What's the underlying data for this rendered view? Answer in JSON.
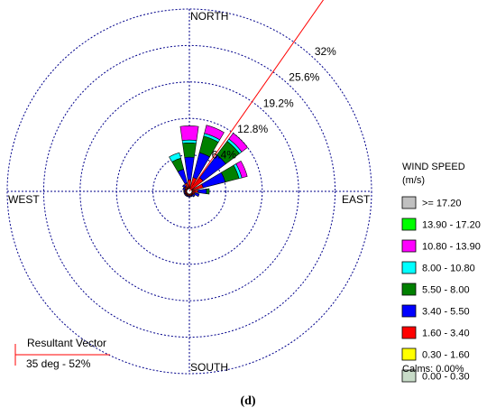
{
  "chart_data": {
    "type": "wind-rose",
    "directions": [
      "N",
      "NNE",
      "NE",
      "ENE",
      "E",
      "ESE",
      "SE",
      "SSE",
      "S",
      "SSW",
      "SW",
      "WSW",
      "W",
      "WNW",
      "NW",
      "NNW"
    ],
    "radial_ticks": [
      6.4,
      12.8,
      19.2,
      25.6,
      32
    ],
    "radial_tick_labels": [
      "6.4%",
      "12.8%",
      "19.2%",
      "25.6%",
      "32%"
    ],
    "rmax": 32,
    "compass_labels": {
      "north": "NORTH",
      "south": "SOUTH",
      "east": "EAST",
      "west": "WEST"
    },
    "legend": {
      "title_line1": "WIND SPEED",
      "title_line2": "(m/s)",
      "classes": [
        {
          "label": ">= 17.20",
          "color": "#c0c0c0"
        },
        {
          "label": "13.90 - 17.20",
          "color": "#00ff00"
        },
        {
          "label": "10.80 - 13.90",
          "color": "#ff00ff"
        },
        {
          "label": "8.00 - 10.80",
          "color": "#00ffff"
        },
        {
          "label": "5.50 - 8.00",
          "color": "#008000"
        },
        {
          "label": "3.40 - 5.50",
          "color": "#0000ff"
        },
        {
          "label": "1.60 - 3.40",
          "color": "#ff0000"
        },
        {
          "label": "0.30 - 1.60",
          "color": "#ffff00"
        },
        {
          "label": "0.00 - 0.30",
          "color": "#c8dcc8"
        }
      ],
      "calms": "Calms: 0.00%"
    },
    "series": [
      {
        "direction": "N",
        "cumulative": [
          0,
          0,
          0.5,
          2.0,
          6.0,
          8.5,
          9.0,
          11.5
        ]
      },
      {
        "direction": "NNE",
        "cumulative": [
          0,
          0,
          0.5,
          2.5,
          7.0,
          10.0,
          10.5,
          12.0
        ]
      },
      {
        "direction": "NE",
        "cumulative": [
          0,
          0,
          0.5,
          3.0,
          8.0,
          11.0,
          11.5,
          12.8
        ]
      },
      {
        "direction": "ENE",
        "cumulative": [
          0,
          0,
          0.5,
          2.5,
          6.5,
          9.0,
          9.5,
          10.5
        ]
      },
      {
        "direction": "E",
        "cumulative": [
          0,
          0,
          0.3,
          1.5,
          3.0,
          3.5,
          3.5,
          3.5
        ]
      },
      {
        "direction": "ESE",
        "cumulative": [
          0,
          0,
          0.3,
          1.0,
          1.8,
          1.8,
          1.8,
          1.8
        ]
      },
      {
        "direction": "SE",
        "cumulative": [
          0,
          0,
          0.3,
          0.8,
          1.2,
          1.2,
          1.2,
          1.2
        ]
      },
      {
        "direction": "SSE",
        "cumulative": [
          0,
          0,
          0.3,
          0.8,
          1.0,
          1.0,
          1.0,
          1.0
        ]
      },
      {
        "direction": "S",
        "cumulative": [
          0,
          0,
          0.3,
          0.8,
          1.0,
          1.0,
          1.0,
          1.0
        ]
      },
      {
        "direction": "SSW",
        "cumulative": [
          0,
          0,
          0.3,
          0.8,
          1.0,
          1.0,
          1.0,
          1.0
        ]
      },
      {
        "direction": "SW",
        "cumulative": [
          0,
          0,
          0.3,
          0.8,
          1.0,
          1.0,
          1.0,
          1.0
        ]
      },
      {
        "direction": "WSW",
        "cumulative": [
          0,
          0,
          0.3,
          0.8,
          1.0,
          1.0,
          1.0,
          1.0
        ]
      },
      {
        "direction": "W",
        "cumulative": [
          0,
          0,
          0.3,
          0.8,
          1.0,
          1.0,
          1.0,
          1.0
        ]
      },
      {
        "direction": "WNW",
        "cumulative": [
          0,
          0,
          0.3,
          0.8,
          1.2,
          1.2,
          1.2,
          1.2
        ]
      },
      {
        "direction": "NW",
        "cumulative": [
          0,
          0,
          0.3,
          1.0,
          1.5,
          1.5,
          1.5,
          1.5
        ]
      },
      {
        "direction": "NNW",
        "cumulative": [
          0,
          0,
          0.5,
          1.5,
          4.0,
          6.0,
          7.0,
          7.0
        ]
      }
    ],
    "series_order": [
      "0.00 - 0.30",
      "0.30 - 1.60",
      "1.60 - 3.40",
      "3.40 - 5.50",
      "5.50 - 8.00",
      "8.00 - 10.80",
      "10.80 - 13.90",
      "13.90 - 17.20"
    ],
    "resultant_vector": {
      "title": "Resultant Vector",
      "text": "35 deg - 52%",
      "direction_deg": 35,
      "magnitude_pct": 52,
      "color": "#ff0000"
    },
    "grid_color": "#00008b",
    "caption": "(d)"
  }
}
